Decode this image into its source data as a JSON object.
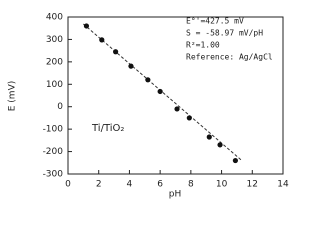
{
  "chart_data": {
    "type": "scatter",
    "xlabel": "pH",
    "ylabel": "E (mV)",
    "annotations": [
      "E°'=427.5 mV",
      "S = -58.97 mV/pH",
      "R²=1.00",
      "Reference: Ag/AgCl"
    ],
    "label": "Ti/TiO₂",
    "x": [
      1.2,
      2.2,
      3.1,
      4.1,
      5.2,
      6.0,
      7.1,
      7.9,
      9.2,
      9.9,
      10.9
    ],
    "values": [
      360,
      298,
      245,
      181,
      120,
      68,
      -10,
      -50,
      -135,
      -170,
      -240
    ],
    "color": "#111111",
    "fit_line": {
      "x": [
        1.0,
        11.3
      ],
      "values": [
        369,
        -239
      ]
    },
    "xlim": [
      0,
      14
    ],
    "xticks": [
      0,
      2,
      4,
      6,
      8,
      10,
      12,
      14
    ],
    "ylim": [
      -300,
      400
    ],
    "yticks": [
      -300,
      -200,
      -100,
      0,
      100,
      200,
      300,
      400
    ]
  }
}
